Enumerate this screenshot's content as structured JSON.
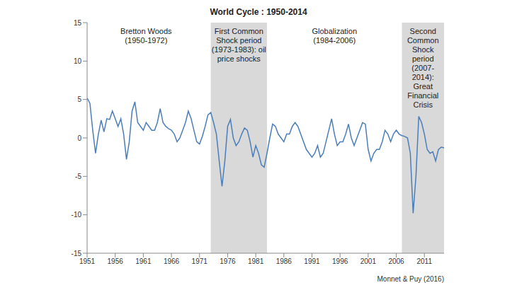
{
  "chart_data": {
    "type": "line",
    "title": "World Cycle : 1950-2014",
    "source": "Monnet & Puy (2016)",
    "grid": false,
    "xlim": [
      1951,
      2014.5
    ],
    "xticks": [
      1951,
      1956,
      1961,
      1966,
      1971,
      1976,
      1981,
      1986,
      1991,
      1996,
      2001,
      2006,
      2011
    ],
    "ylim": [
      -15,
      15
    ],
    "yticks": [
      -15,
      -10,
      -5,
      0,
      5,
      10,
      15
    ],
    "periods": [
      {
        "label": [
          "Bretton Woods",
          "(1950-1972)"
        ],
        "start": 1950,
        "end": 1972,
        "shaded": false
      },
      {
        "label": [
          "First Common",
          "Shock period",
          "(1973-1983): oil",
          "price shocks"
        ],
        "start": 1973,
        "end": 1983,
        "shaded": true
      },
      {
        "label": [
          "Globalization",
          "(1984-2006)"
        ],
        "start": 1984,
        "end": 2006,
        "shaded": false
      },
      {
        "label": [
          "Second",
          "Common",
          "Shock",
          "period",
          "(2007-",
          "2014):",
          "Great",
          "Financial",
          "Crisis"
        ],
        "start": 2007,
        "end": 2014.5,
        "shaded": true
      }
    ],
    "x": [
      1951,
      1951.5,
      1952,
      1952.5,
      1953,
      1953.5,
      1954,
      1954.5,
      1955,
      1955.5,
      1956,
      1956.5,
      1957,
      1957.5,
      1958,
      1958.5,
      1959,
      1959.5,
      1960,
      1960.5,
      1961,
      1961.5,
      1962,
      1962.5,
      1963,
      1963.5,
      1964,
      1964.5,
      1965,
      1965.5,
      1966,
      1966.5,
      1967,
      1967.5,
      1968,
      1968.5,
      1969,
      1969.5,
      1970,
      1970.5,
      1971,
      1971.5,
      1972,
      1972.5,
      1973,
      1973.5,
      1974,
      1974.5,
      1975,
      1975.5,
      1976,
      1976.5,
      1977,
      1977.5,
      1978,
      1978.5,
      1979,
      1979.5,
      1980,
      1980.5,
      1981,
      1981.5,
      1982,
      1982.5,
      1983,
      1983.5,
      1984,
      1984.5,
      1985,
      1985.5,
      1986,
      1986.5,
      1987,
      1987.5,
      1988,
      1988.5,
      1989,
      1989.5,
      1990,
      1990.5,
      1991,
      1991.5,
      1992,
      1992.5,
      1993,
      1993.5,
      1994,
      1994.5,
      1995,
      1995.5,
      1996,
      1996.5,
      1997,
      1997.5,
      1998,
      1998.5,
      1999,
      1999.5,
      2000,
      2000.5,
      2001,
      2001.5,
      2002,
      2002.5,
      2003,
      2003.5,
      2004,
      2004.5,
      2005,
      2005.5,
      2006,
      2006.5,
      2007,
      2007.5,
      2008,
      2008.5,
      2009,
      2009.5,
      2010,
      2010.5,
      2011,
      2011.5,
      2012,
      2012.5,
      2013,
      2013.5,
      2014,
      2014.5
    ],
    "series": [
      {
        "name": "World Cycle",
        "color": "#4a7ebb",
        "values": [
          5.2,
          4.5,
          1.0,
          -2.0,
          0.5,
          2.3,
          0.8,
          2.5,
          2.4,
          3.5,
          2.5,
          1.5,
          2.5,
          0.5,
          -2.8,
          -0.5,
          3.5,
          4.7,
          2.0,
          1.5,
          1.0,
          2.0,
          1.5,
          1.0,
          1.0,
          2.0,
          3.8,
          2.0,
          1.5,
          1.2,
          1.0,
          0.5,
          -0.5,
          0.0,
          1.0,
          2.0,
          3.5,
          2.5,
          1.0,
          -0.5,
          -0.8,
          0.2,
          1.5,
          3.0,
          3.3,
          2.0,
          0.5,
          -3.0,
          -6.3,
          -3.0,
          1.5,
          2.4,
          0.0,
          -1.0,
          -0.5,
          0.5,
          1.3,
          1.0,
          -0.5,
          -2.5,
          -1.0,
          -2.0,
          -3.5,
          -3.8,
          -2.0,
          0.0,
          1.8,
          1.5,
          0.5,
          0.0,
          -0.5,
          0.5,
          0.5,
          1.5,
          2.0,
          1.5,
          0.5,
          -0.5,
          -1.5,
          -2.0,
          -2.5,
          -2.0,
          -1.0,
          -2.5,
          -2.0,
          -0.5,
          1.0,
          2.5,
          0.5,
          -1.0,
          -0.5,
          -0.5,
          0.5,
          1.8,
          0.0,
          -1.0,
          0.0,
          1.0,
          2.0,
          1.8,
          -1.5,
          -3.0,
          -2.0,
          -1.5,
          -1.5,
          -0.5,
          1.0,
          0.5,
          -0.5,
          0.5,
          1.0,
          0.5,
          0.3,
          0.2,
          0.0,
          -2.0,
          -9.8,
          -5.0,
          2.8,
          2.0,
          0.5,
          -1.5,
          -2.0,
          -1.8,
          -3.0,
          -1.5,
          -1.2,
          -1.3
        ]
      }
    ]
  }
}
